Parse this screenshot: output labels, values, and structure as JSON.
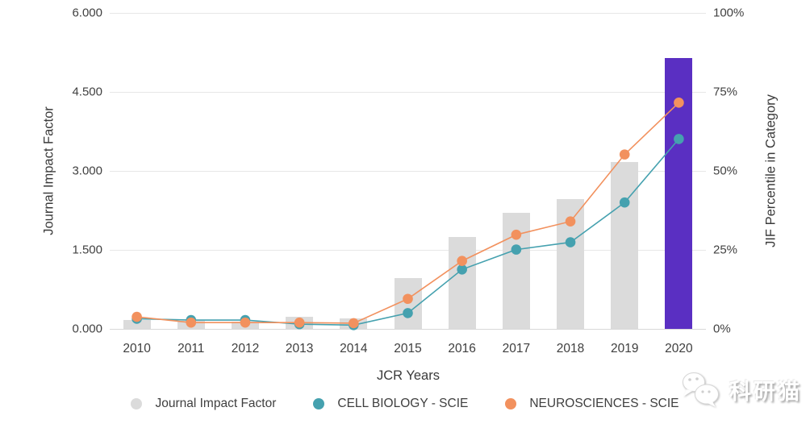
{
  "chart_data": {
    "type": "bar",
    "combo_note": "bar series on left axis + two line series on right percentile axis",
    "categories": [
      "2010",
      "2011",
      "2012",
      "2013",
      "2014",
      "2015",
      "2016",
      "2017",
      "2018",
      "2019",
      "2020"
    ],
    "xlabel": "JCR Years",
    "left_axis": {
      "label": "Journal Impact Factor",
      "ticks": [
        "0.000",
        "1.500",
        "3.000",
        "4.500",
        "6.000"
      ],
      "range": [
        0,
        6
      ]
    },
    "right_axis": {
      "label": "JIF Percentile in Category",
      "ticks": [
        "0%",
        "25%",
        "50%",
        "75%",
        "100%"
      ],
      "range": [
        0,
        100
      ]
    },
    "grid": true,
    "legend_position": "bottom",
    "series": [
      {
        "name": "Journal Impact Factor",
        "type": "bar",
        "axis": "left",
        "color": "#dbdbdb",
        "highlight_color": "#5a2fc2",
        "highlight_index": 10,
        "values": [
          0.17,
          0.15,
          0.14,
          0.23,
          0.2,
          0.97,
          1.75,
          2.21,
          2.46,
          3.17,
          5.14
        ]
      },
      {
        "name": "CELL BIOLOGY - SCIE",
        "type": "line",
        "axis": "right",
        "color": "#45a1af",
        "values": [
          3.2,
          2.8,
          2.8,
          1.5,
          1.2,
          5.0,
          18.8,
          25.1,
          27.4,
          40.0,
          60.1
        ]
      },
      {
        "name": "NEUROSCIENCES - SCIE",
        "type": "line",
        "axis": "right",
        "color": "#f2915e",
        "values": [
          3.8,
          2.0,
          2.0,
          2.0,
          1.8,
          9.5,
          21.5,
          29.8,
          34.0,
          55.2,
          71.6
        ]
      }
    ]
  },
  "watermark": {
    "text": "科研猫",
    "icon": "wechat-cat-logo"
  }
}
